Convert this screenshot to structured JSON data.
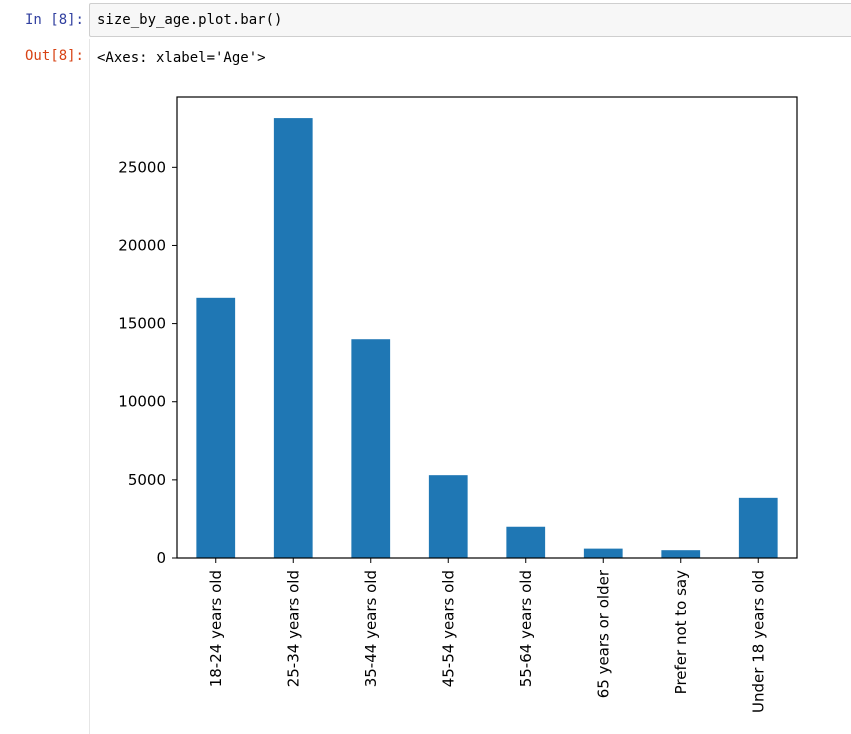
{
  "cell": {
    "input_prompt": "In [8]:",
    "input_code": "size_by_age.plot.bar()",
    "output_prompt": "Out[8]:",
    "output_text": "<Axes: xlabel='Age'>"
  },
  "colors": {
    "bar": "#1f77b4",
    "input_prompt": "#303f9f",
    "output_prompt": "#d84315"
  },
  "chart_data": {
    "type": "bar",
    "categories": [
      "18-24 years old",
      "25-34 years old",
      "35-44 years old",
      "45-54 years old",
      "55-64 years old",
      "65 years or older",
      "Prefer not to say",
      "Under 18 years old"
    ],
    "values": [
      16650,
      28150,
      14000,
      5300,
      2000,
      600,
      500,
      3850
    ],
    "ylim": [
      0,
      29500
    ],
    "yticks": [
      0,
      5000,
      10000,
      15000,
      20000,
      25000
    ],
    "ytick_labels": [
      "0",
      "5000",
      "10000",
      "15000",
      "20000",
      "25000"
    ],
    "xlabel": "",
    "ylabel": "",
    "title": "",
    "grid": false,
    "legend": false
  }
}
